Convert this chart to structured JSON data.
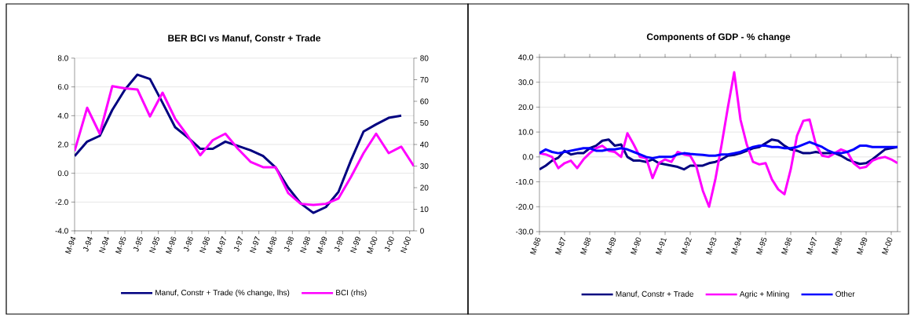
{
  "chart_data": [
    {
      "type": "line",
      "title": "BER BCI vs Manuf, Constr + Trade",
      "xlim": [
        "1994-03",
        "2000-12"
      ],
      "xticks": [
        {
          "value": "1994-03",
          "label": "M-94"
        },
        {
          "value": "1994-07",
          "label": "J-94"
        },
        {
          "value": "1994-11",
          "label": "N-94"
        },
        {
          "value": "1995-03",
          "label": "M-95"
        },
        {
          "value": "1995-07",
          "label": "J-95"
        },
        {
          "value": "1995-11",
          "label": "N-95"
        },
        {
          "value": "1996-03",
          "label": "M-96"
        },
        {
          "value": "1996-07",
          "label": "J-96"
        },
        {
          "value": "1996-11",
          "label": "N-96"
        },
        {
          "value": "1997-03",
          "label": "M-97"
        },
        {
          "value": "1997-07",
          "label": "J-97"
        },
        {
          "value": "1997-11",
          "label": "N-97"
        },
        {
          "value": "1998-03",
          "label": "M-98"
        },
        {
          "value": "1998-07",
          "label": "J-98"
        },
        {
          "value": "1998-11",
          "label": "N-98"
        },
        {
          "value": "1999-03",
          "label": "M-99"
        },
        {
          "value": "1999-07",
          "label": "J-99"
        },
        {
          "value": "1999-11",
          "label": "N-99"
        },
        {
          "value": "2000-03",
          "label": "M-00"
        },
        {
          "value": "2000-07",
          "label": "J-00"
        },
        {
          "value": "2000-11",
          "label": "N-00"
        }
      ],
      "ylim": [
        -4,
        8
      ],
      "yticks": [
        {
          "value": -4,
          "label": "-4.0"
        },
        {
          "value": -2,
          "label": "-2.0"
        },
        {
          "value": 0,
          "label": "0.0"
        },
        {
          "value": 2,
          "label": "2.0"
        },
        {
          "value": 4,
          "label": "4.0"
        },
        {
          "value": 6,
          "label": "6.0"
        },
        {
          "value": 8,
          "label": "8.0"
        }
      ],
      "y2lim": [
        0,
        80
      ],
      "y2ticks": [
        0,
        10,
        20,
        30,
        40,
        50,
        60,
        70,
        80
      ],
      "grid": "y",
      "legend": "bottom",
      "marker": "none",
      "line_style": "solid",
      "series": [
        {
          "name": "Manuf, Constr + Trade (% change, lhs)",
          "color": "#000080",
          "x": [
            "1994-03",
            "1994-06",
            "1994-09",
            "1994-12",
            "1995-03",
            "1995-06",
            "1995-09",
            "1995-12",
            "1996-03",
            "1996-06",
            "1996-09",
            "1996-12",
            "1997-03",
            "1997-06",
            "1997-09",
            "1997-12",
            "1998-03",
            "1998-06",
            "1998-09",
            "1998-12",
            "1999-03",
            "1999-06",
            "1999-09",
            "1999-12",
            "2000-03",
            "2000-06",
            "2000-09"
          ],
          "values": [
            1.2,
            2.2,
            2.6,
            4.4,
            5.8,
            6.85,
            6.55,
            4.9,
            3.2,
            2.5,
            1.7,
            1.7,
            2.2,
            1.9,
            1.6,
            1.2,
            0.4,
            -1.0,
            -2.1,
            -2.75,
            -2.35,
            -1.3,
            0.9,
            2.9,
            3.4,
            3.85,
            4.0
          ]
        },
        {
          "name": "BCI (rhs)",
          "color": "#ff00ff",
          "axis": "y2",
          "x": [
            "1994-03",
            "1994-06",
            "1994-09",
            "1994-12",
            "1995-03",
            "1995-06",
            "1995-09",
            "1995-12",
            "1996-03",
            "1996-06",
            "1996-09",
            "1996-12",
            "1997-03",
            "1997-06",
            "1997-09",
            "1997-12",
            "1998-03",
            "1998-06",
            "1998-09",
            "1998-12",
            "1999-03",
            "1999-06",
            "1999-09",
            "1999-12",
            "2000-03",
            "2000-06",
            "2000-09",
            "2000-12"
          ],
          "values": [
            37,
            57,
            45,
            67,
            66,
            65.5,
            53,
            64,
            52,
            44,
            35,
            42,
            45,
            38,
            32,
            29.5,
            29.5,
            17.5,
            12.5,
            12,
            12.5,
            15,
            25,
            36,
            45,
            36,
            39,
            30
          ]
        }
      ]
    },
    {
      "type": "line",
      "title": "Components of GDP - % change",
      "xlim": [
        "1986-03",
        "2000-06"
      ],
      "xticks": [
        {
          "value": "1986-03",
          "label": "M-86"
        },
        {
          "value": "1987-03",
          "label": "M-87"
        },
        {
          "value": "1988-03",
          "label": "M-88"
        },
        {
          "value": "1989-03",
          "label": "M-89"
        },
        {
          "value": "1990-03",
          "label": "M-90"
        },
        {
          "value": "1991-03",
          "label": "M-91"
        },
        {
          "value": "1992-03",
          "label": "M-92"
        },
        {
          "value": "1993-03",
          "label": "M-93"
        },
        {
          "value": "1994-03",
          "label": "M-94"
        },
        {
          "value": "1995-03",
          "label": "M-95"
        },
        {
          "value": "1996-03",
          "label": "M-96"
        },
        {
          "value": "1997-03",
          "label": "M-97"
        },
        {
          "value": "1998-03",
          "label": "M-98"
        },
        {
          "value": "1999-03",
          "label": "M-99"
        },
        {
          "value": "2000-03",
          "label": "M-00"
        }
      ],
      "ylim": [
        -30,
        40
      ],
      "yticks": [
        {
          "value": -30,
          "label": "-30.0"
        },
        {
          "value": -20,
          "label": "-20.0"
        },
        {
          "value": -10,
          "label": "-10.0"
        },
        {
          "value": 0,
          "label": "0.0"
        },
        {
          "value": 10,
          "label": "10.0"
        },
        {
          "value": 20,
          "label": "20.0"
        },
        {
          "value": 30,
          "label": "30.0"
        },
        {
          "value": 40,
          "label": "40.0"
        }
      ],
      "grid": "y",
      "legend": "bottom",
      "marker": "none",
      "line_style": "solid",
      "x": [
        "1986-03",
        "1986-06",
        "1986-09",
        "1986-12",
        "1987-03",
        "1987-06",
        "1987-09",
        "1987-12",
        "1988-03",
        "1988-06",
        "1988-09",
        "1988-12",
        "1989-03",
        "1989-06",
        "1989-09",
        "1989-12",
        "1990-03",
        "1990-06",
        "1990-09",
        "1990-12",
        "1991-03",
        "1991-06",
        "1991-09",
        "1991-12",
        "1992-03",
        "1992-06",
        "1992-09",
        "1992-12",
        "1993-03",
        "1993-06",
        "1993-09",
        "1993-12",
        "1994-03",
        "1994-06",
        "1994-09",
        "1994-12",
        "1995-03",
        "1995-06",
        "1995-09",
        "1995-12",
        "1996-03",
        "1996-06",
        "1996-09",
        "1996-12",
        "1997-03",
        "1997-06",
        "1997-09",
        "1997-12",
        "1998-03",
        "1998-06",
        "1998-09",
        "1998-12",
        "1999-03",
        "1999-06",
        "1999-09",
        "1999-12",
        "2000-03",
        "2000-06"
      ],
      "series": [
        {
          "name": "Manuf, Constr + Trade",
          "color": "#000080",
          "values": [
            -5.0,
            -3.5,
            -1.5,
            -0.3,
            2.5,
            1.0,
            1.5,
            1.5,
            3.5,
            4.5,
            6.5,
            7.0,
            4.5,
            5.0,
            0.0,
            -1.5,
            -1.5,
            -2.0,
            -1.0,
            -2.5,
            -3.0,
            -3.5,
            -4.0,
            -5.0,
            -3.5,
            -3.5,
            -3.5,
            -2.5,
            -2.0,
            -1.0,
            0.5,
            0.8,
            1.5,
            2.5,
            3.5,
            4.0,
            5.5,
            7.0,
            6.5,
            4.5,
            3.0,
            2.5,
            1.5,
            1.5,
            2.0,
            1.5,
            1.5,
            1.5,
            0.5,
            -1.0,
            -2.0,
            -2.8,
            -2.5,
            -1.0,
            1.0,
            3.0,
            3.5,
            4.0
          ]
        },
        {
          "name": "Agric + Mining",
          "color": "#ff00ff",
          "values": [
            1.5,
            1.0,
            0.0,
            -4.5,
            -2.5,
            -1.5,
            -4.5,
            -1.0,
            1.5,
            3.5,
            4.5,
            2.5,
            2.0,
            0.0,
            9.5,
            5.0,
            0.0,
            -0.5,
            -8.5,
            -2.5,
            -1.0,
            -2.0,
            2.0,
            1.0,
            0.5,
            -4.0,
            -13.5,
            -20.0,
            -9.0,
            5.0,
            20.0,
            34.0,
            15.0,
            5.0,
            -2.0,
            -3.0,
            -2.5,
            -9.0,
            -13.0,
            -15.0,
            -5.0,
            8.5,
            14.5,
            15.0,
            5.0,
            0.5,
            0.0,
            1.5,
            3.0,
            2.0,
            -2.5,
            -4.5,
            -4.0,
            -1.5,
            -0.5,
            0.0,
            -1.0,
            -2.5
          ]
        },
        {
          "name": "Other",
          "color": "#0000ff",
          "values": [
            1.5,
            3.0,
            2.0,
            1.5,
            2.0,
            2.5,
            3.0,
            3.5,
            3.5,
            2.5,
            2.5,
            3.0,
            3.0,
            3.5,
            3.0,
            2.0,
            1.0,
            0.0,
            -0.5,
            0.0,
            0.0,
            0.0,
            1.0,
            1.5,
            1.2,
            1.0,
            0.8,
            0.5,
            0.5,
            1.0,
            1.0,
            1.5,
            2.0,
            3.0,
            4.0,
            4.5,
            4.5,
            4.0,
            4.0,
            3.5,
            3.5,
            4.0,
            5.0,
            6.0,
            5.0,
            4.0,
            2.5,
            1.5,
            1.5,
            2.0,
            3.0,
            4.5,
            4.5,
            4.0,
            4.0,
            4.0,
            4.0,
            4.0
          ]
        }
      ]
    }
  ]
}
